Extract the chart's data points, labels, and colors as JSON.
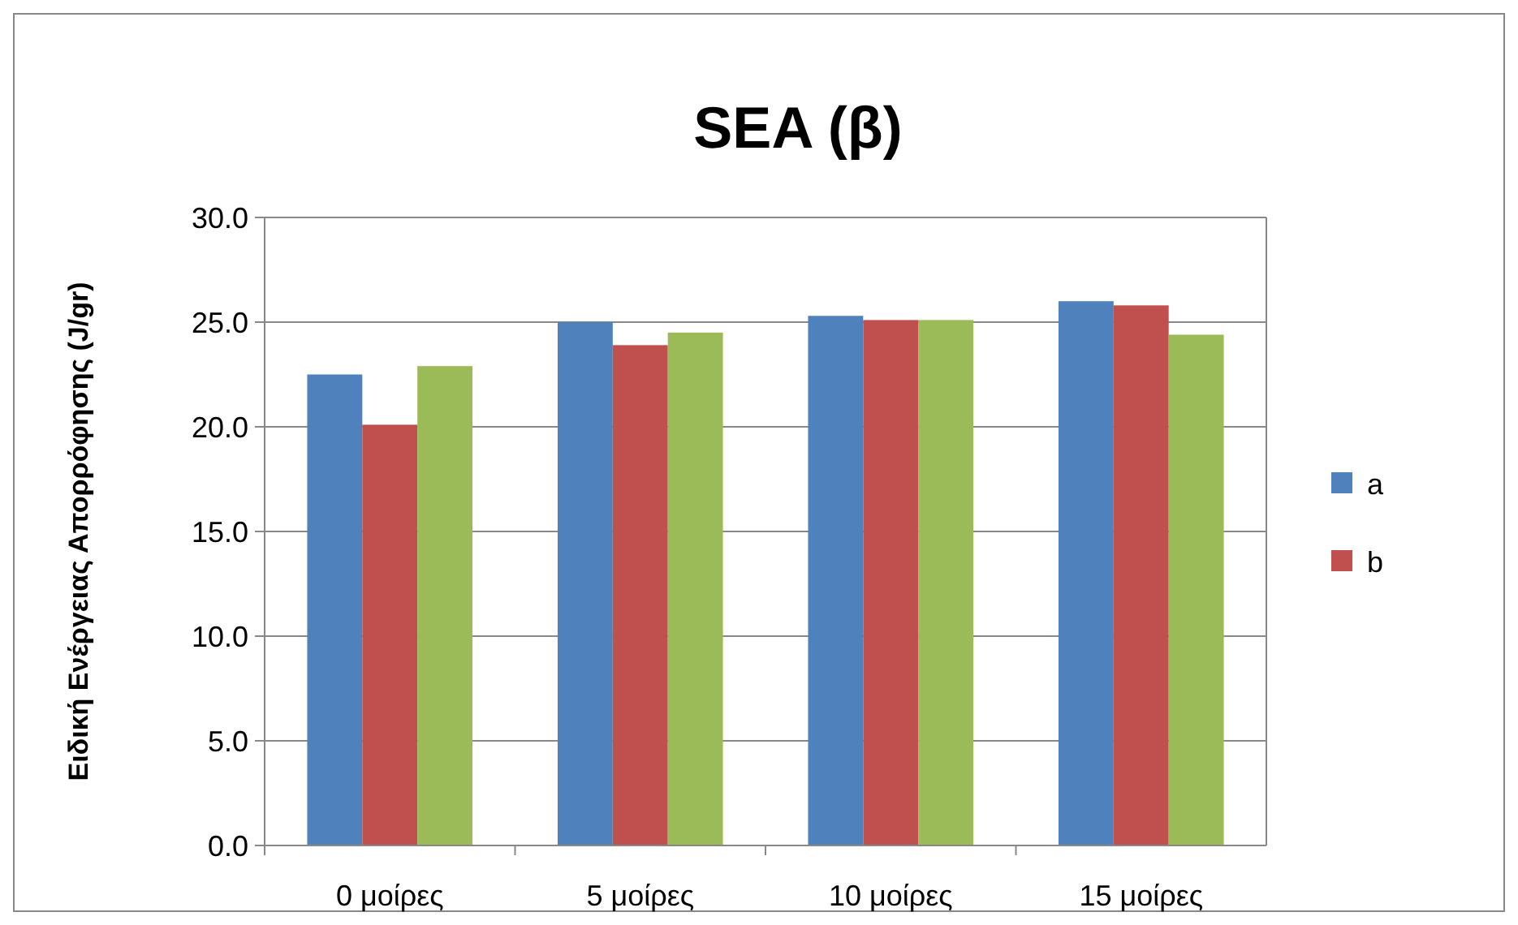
{
  "chart_data": {
    "type": "bar",
    "title": "SEA (β)",
    "ylabel": "Ειδική Ενέργειας Απορρόφησης (J/gr)",
    "categories": [
      "0 μοίρες",
      "5 μοίρες",
      "10 μοίρες",
      "15 μοίρες"
    ],
    "series": [
      {
        "name": "a",
        "color": "#4f81bd",
        "values": [
          22.5,
          25.0,
          25.3,
          26.0
        ]
      },
      {
        "name": "b",
        "color": "#c0504d",
        "values": [
          20.1,
          23.9,
          25.1,
          25.8
        ]
      },
      {
        "color": "#9bbb59",
        "values": [
          22.9,
          24.5,
          25.1,
          24.4
        ]
      }
    ],
    "ylim": [
      0,
      30
    ],
    "yticks": [
      {
        "value": 0,
        "label": "0.0"
      },
      {
        "value": 5,
        "label": "5.0"
      },
      {
        "value": 10,
        "label": "10.0"
      },
      {
        "value": 15,
        "label": "15.0"
      },
      {
        "value": 20,
        "label": "20.0"
      },
      {
        "value": 25,
        "label": "25.0"
      },
      {
        "value": 30,
        "label": "30.0"
      }
    ],
    "grid": "y",
    "legend": "right"
  }
}
